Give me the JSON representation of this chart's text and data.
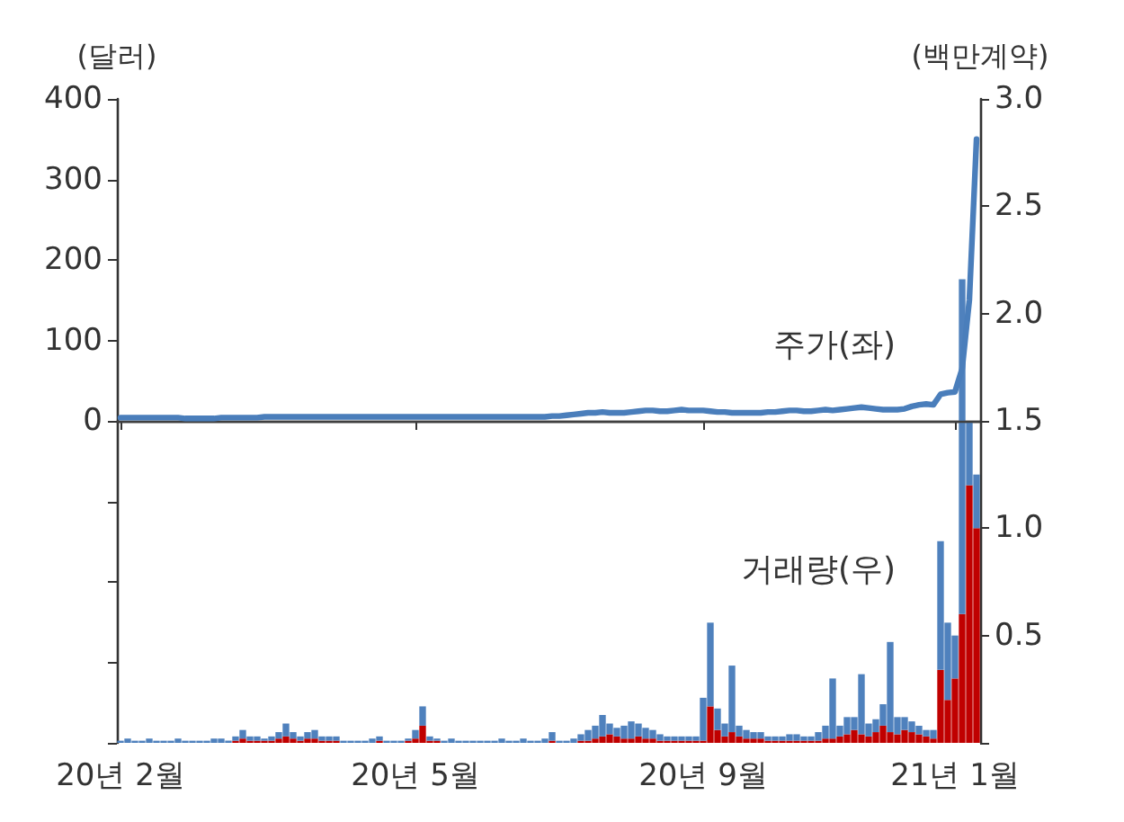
{
  "chart_data": {
    "type": "bar",
    "ylabel": "(달러)",
    "y2label": "(백만계약)",
    "annotations": [
      "주가(좌)",
      "거래량(우)"
    ],
    "categories": [
      "20년 2월",
      null,
      null,
      null,
      null,
      null,
      null,
      null,
      null,
      null,
      null,
      null,
      null,
      null,
      null,
      null,
      null,
      null,
      null,
      null,
      null,
      null,
      null,
      null,
      null,
      null,
      null,
      null,
      null,
      null,
      null,
      null,
      null,
      null,
      null,
      null,
      null,
      null,
      null,
      null,
      null,
      "20년 5월",
      null,
      null,
      null,
      null,
      null,
      null,
      null,
      null,
      null,
      null,
      null,
      null,
      null,
      null,
      null,
      null,
      null,
      null,
      null,
      null,
      null,
      null,
      null,
      null,
      null,
      null,
      null,
      null,
      null,
      null,
      null,
      null,
      null,
      null,
      null,
      null,
      null,
      null,
      null,
      "20년 9월",
      null,
      null,
      null,
      null,
      null,
      null,
      null,
      null,
      null,
      null,
      null,
      null,
      null,
      null,
      null,
      null,
      null,
      null,
      null,
      null,
      null,
      null,
      null,
      null,
      null,
      null,
      null,
      null,
      null,
      null,
      null,
      null,
      null,
      null,
      "21년 1월",
      null,
      null,
      null
    ],
    "series": [
      {
        "axis": "y2",
        "color": "#c00000",
        "values": [
          0,
          0,
          0,
          0,
          0,
          0,
          0,
          0,
          0,
          0,
          0,
          0,
          0,
          0,
          0,
          0,
          0.01,
          0.02,
          0.01,
          0.01,
          0.01,
          0.01,
          0.02,
          0.03,
          0.02,
          0.01,
          0.02,
          0.02,
          0.01,
          0.01,
          0.01,
          0,
          0,
          0,
          0,
          0,
          0.01,
          0,
          0,
          0,
          0.01,
          0.02,
          0.08,
          0.01,
          0.01,
          0,
          0,
          0,
          0,
          0,
          0,
          0,
          0,
          0,
          0,
          0,
          0,
          0,
          0,
          0,
          0.01,
          0,
          0,
          0,
          0.01,
          0.01,
          0.02,
          0.03,
          0.04,
          0.03,
          0.02,
          0.02,
          0.03,
          0.02,
          0.02,
          0.01,
          0.01,
          0.01,
          0.01,
          0.01,
          0.01,
          0.01,
          0.17,
          0.06,
          0.03,
          0.05,
          0.03,
          0.02,
          0.02,
          0.02,
          0.01,
          0.01,
          0.01,
          0.01,
          0.01,
          0.01,
          0.01,
          0.01,
          0.02,
          0.02,
          0.03,
          0.04,
          0.06,
          0.04,
          0.03,
          0.05,
          0.08,
          0.05,
          0.04,
          0.06,
          0.05,
          0.04,
          0.03,
          0.02,
          0.34,
          0.2,
          0.3,
          0.6,
          1.2,
          1.0
        ]
      },
      {
        "axis": "y2",
        "color": "#4f81bd",
        "values": [
          0.01,
          0.02,
          0.01,
          0.01,
          0.02,
          0.01,
          0.01,
          0.01,
          0.02,
          0.01,
          0.01,
          0.01,
          0.01,
          0.02,
          0.02,
          0.01,
          0.02,
          0.04,
          0.02,
          0.02,
          0.01,
          0.02,
          0.03,
          0.06,
          0.03,
          0.02,
          0.03,
          0.04,
          0.02,
          0.02,
          0.02,
          0.01,
          0.01,
          0.01,
          0.01,
          0.02,
          0.02,
          0.01,
          0.01,
          0.01,
          0.01,
          0.04,
          0.09,
          0.02,
          0.01,
          0.01,
          0.02,
          0.01,
          0.01,
          0.01,
          0.01,
          0.01,
          0.01,
          0.02,
          0.01,
          0.01,
          0.02,
          0.01,
          0.01,
          0.02,
          0.04,
          0.01,
          0.01,
          0.02,
          0.03,
          0.05,
          0.06,
          0.1,
          0.05,
          0.04,
          0.06,
          0.08,
          0.06,
          0.05,
          0.04,
          0.03,
          0.02,
          0.02,
          0.02,
          0.02,
          0.02,
          0.2,
          0.39,
          0.1,
          0.06,
          0.31,
          0.05,
          0.04,
          0.03,
          0.03,
          0.02,
          0.02,
          0.02,
          0.03,
          0.03,
          0.02,
          0.02,
          0.04,
          0.06,
          0.28,
          0.05,
          0.08,
          0.06,
          0.28,
          0.06,
          0.06,
          0.1,
          0.42,
          0.08,
          0.06,
          0.05,
          0.04,
          0.03,
          0.04,
          0.6,
          0.36,
          0.2,
          1.56,
          0.3,
          0.25
        ]
      },
      {
        "type": "line",
        "axis": "y",
        "color": "#4a7ebb",
        "values": [
          4,
          4,
          4,
          4,
          4,
          4,
          4,
          4,
          4,
          3,
          3,
          3,
          3,
          3,
          4,
          4,
          4,
          4,
          4,
          4,
          5,
          5,
          5,
          5,
          5,
          5,
          5,
          5,
          5,
          5,
          5,
          5,
          5,
          5,
          5,
          5,
          5,
          5,
          5,
          5,
          5,
          5,
          5,
          5,
          5,
          5,
          5,
          5,
          5,
          5,
          5,
          5,
          5,
          5,
          5,
          5,
          5,
          5,
          5,
          5,
          6,
          6,
          7,
          8,
          9,
          10,
          10,
          11,
          10,
          10,
          10,
          11,
          12,
          13,
          13,
          12,
          12,
          13,
          14,
          13,
          13,
          13,
          12,
          11,
          11,
          10,
          10,
          10,
          10,
          10,
          11,
          11,
          12,
          13,
          13,
          12,
          12,
          13,
          14,
          13,
          14,
          15,
          16,
          17,
          16,
          15,
          14,
          14,
          14,
          15,
          18,
          20,
          21,
          20,
          33,
          35,
          36,
          65,
          150,
          350
        ]
      }
    ],
    "stacked": true,
    "ylim": [
      -400,
      400
    ],
    "yticks": [
      {
        "value": -400,
        "label": null
      },
      {
        "value": -300,
        "label": null
      },
      {
        "value": -200,
        "label": null
      },
      {
        "value": -100,
        "label": null
      },
      0,
      100,
      200,
      300,
      400
    ],
    "y2lim": [
      0,
      3
    ],
    "y2ticks": [
      {
        "value": 0,
        "label": null
      },
      0.5,
      {
        "value": 1,
        "label": "1.0"
      },
      1.5,
      {
        "value": 2,
        "label": "2.0"
      },
      2.5,
      {
        "value": 3,
        "label": "3.0"
      }
    ],
    "ref_lines": [
      {
        "axis": "y",
        "value": 0,
        "color": "#404040"
      }
    ],
    "marker": "none",
    "line_style": "solid",
    "grid": false
  }
}
